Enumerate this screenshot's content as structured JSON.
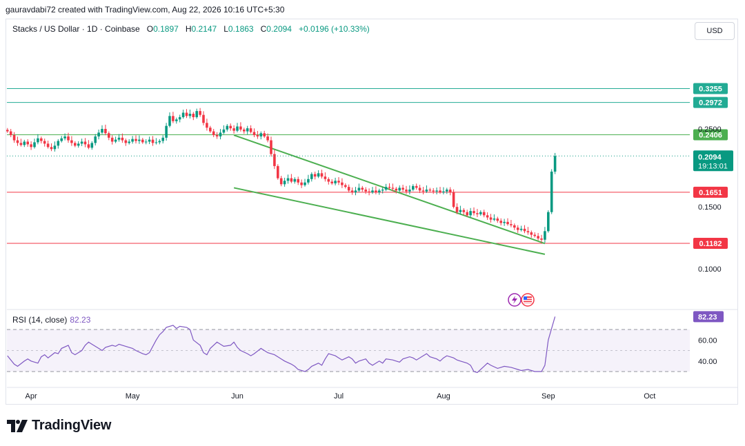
{
  "credit": "gauravdabi72 created with TradingView.com, Aug 22, 2026 10:16 UTC+5:30",
  "legend": {
    "symbol": "Stacks / US Dollar · 1D · Coinbase",
    "o_key": "O",
    "o_val": "0.1897",
    "h_key": "H",
    "h_val": "0.2147",
    "l_key": "L",
    "l_val": "0.1863",
    "c_key": "C",
    "c_val": "0.2094",
    "change": "+0.0196 (+10.33%)"
  },
  "currency_button": "USD",
  "rsi": {
    "label": "RSI (14, close)",
    "value": "82.23"
  },
  "brand": "TradingView",
  "colors": {
    "up": "#089981",
    "down": "#f23645",
    "teal_line": "#22ab94",
    "green_line": "#4caf50",
    "red_line": "#f23645",
    "rsi": "#7e57c2",
    "trend": "#4caf50"
  },
  "chart_data": {
    "type": "candlestick",
    "price_axis": {
      "ticks": [
        "0.2500",
        "0.1500",
        "0.1000"
      ],
      "scale": "log"
    },
    "time_axis": {
      "ticks": [
        "Apr",
        "May",
        "Jun",
        "Jul",
        "Aug",
        "Sep",
        "Oct"
      ]
    },
    "horizontal_levels": [
      {
        "value": "0.3255",
        "color": "teal"
      },
      {
        "value": "0.2972",
        "color": "teal"
      },
      {
        "value": "0.2406",
        "color": "green"
      },
      {
        "value": "0.1651",
        "color": "red"
      },
      {
        "value": "0.1182",
        "color": "red"
      }
    ],
    "last_price": {
      "value": "0.2094",
      "countdown": "19:13:01"
    },
    "trendlines": [
      {
        "name": "upper",
        "from": {
          "date": "2026-05-31",
          "price": 0.24
        },
        "to": {
          "date": "2026-08-31",
          "price": 0.118
        }
      },
      {
        "name": "lower",
        "from": {
          "date": "2026-05-31",
          "price": 0.17
        },
        "to": {
          "date": "2026-08-31",
          "price": 0.11
        }
      }
    ],
    "rsi": {
      "levels": [
        "60.00",
        "40.00"
      ],
      "bands": [
        70,
        30
      ],
      "last": "82.23",
      "values": [
        45,
        41,
        37,
        35,
        40,
        42,
        40,
        38,
        44,
        46,
        43,
        48,
        47,
        52,
        55,
        48,
        46,
        50,
        55,
        58,
        56,
        52,
        50,
        53,
        55,
        54,
        56,
        55,
        53,
        52,
        50,
        47,
        46,
        48,
        60,
        65,
        68,
        72,
        74,
        71,
        73,
        72,
        70,
        60,
        55,
        48,
        46,
        52,
        58,
        56,
        54,
        55,
        58,
        53,
        50,
        47,
        45,
        47,
        52,
        50,
        48,
        46,
        44,
        42,
        40,
        37,
        35,
        32,
        30,
        32,
        35,
        38,
        36,
        42,
        47,
        45,
        43,
        41,
        44,
        42,
        38,
        40,
        42,
        38,
        36,
        40,
        38,
        42,
        41,
        40,
        39,
        42,
        44,
        43,
        41,
        45,
        47,
        44,
        42,
        40,
        43,
        45,
        43,
        41,
        40,
        38,
        36,
        30,
        29,
        35,
        38,
        36,
        33,
        34,
        35,
        34,
        33,
        32,
        31,
        32,
        31,
        30,
        30,
        36,
        60,
        82.23
      ]
    },
    "candles_note": "daily OHLC, Mar 25 – Aug 22, 2026",
    "closes": [
      0.246,
      0.24,
      0.232,
      0.228,
      0.225,
      0.23,
      0.226,
      0.222,
      0.229,
      0.235,
      0.231,
      0.227,
      0.222,
      0.219,
      0.224,
      0.231,
      0.235,
      0.238,
      0.232,
      0.228,
      0.224,
      0.227,
      0.23,
      0.226,
      0.221,
      0.228,
      0.238,
      0.244,
      0.25,
      0.243,
      0.236,
      0.23,
      0.233,
      0.236,
      0.232,
      0.228,
      0.23,
      0.234,
      0.231,
      0.233,
      0.229,
      0.23,
      0.233,
      0.228,
      0.229,
      0.231,
      0.236,
      0.255,
      0.272,
      0.263,
      0.266,
      0.27,
      0.278,
      0.272,
      0.276,
      0.27,
      0.281,
      0.274,
      0.26,
      0.252,
      0.246,
      0.24,
      0.238,
      0.244,
      0.249,
      0.255,
      0.251,
      0.247,
      0.254,
      0.249,
      0.246,
      0.251,
      0.245,
      0.24,
      0.238,
      0.243,
      0.238,
      0.232,
      0.212,
      0.196,
      0.181,
      0.174,
      0.178,
      0.181,
      0.177,
      0.18,
      0.176,
      0.173,
      0.176,
      0.18,
      0.186,
      0.183,
      0.187,
      0.183,
      0.18,
      0.177,
      0.175,
      0.178,
      0.176,
      0.173,
      0.171,
      0.167,
      0.165,
      0.167,
      0.17,
      0.168,
      0.166,
      0.165,
      0.167,
      0.165,
      0.167,
      0.168,
      0.171,
      0.17,
      0.169,
      0.167,
      0.17,
      0.168,
      0.166,
      0.168,
      0.172,
      0.17,
      0.167,
      0.166,
      0.168,
      0.167,
      0.166,
      0.167,
      0.165,
      0.166,
      0.168,
      0.165,
      0.15,
      0.145,
      0.147,
      0.145,
      0.142,
      0.146,
      0.144,
      0.143,
      0.145,
      0.142,
      0.14,
      0.138,
      0.139,
      0.137,
      0.135,
      0.136,
      0.134,
      0.133,
      0.131,
      0.129,
      0.13,
      0.128,
      0.127,
      0.125,
      0.124,
      0.122,
      0.121,
      0.128,
      0.145,
      0.189,
      0.2094
    ]
  }
}
